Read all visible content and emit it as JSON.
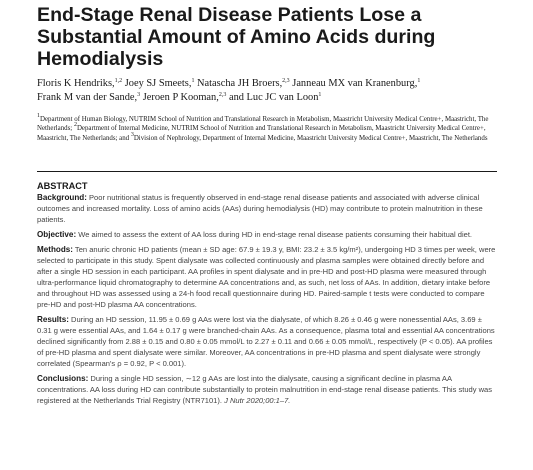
{
  "title": "End-Stage Renal Disease Patients Lose a Substantial Amount of Amino Acids during Hemodialysis",
  "authors": [
    {
      "name": "Floris K Hendriks,",
      "sup": "1,2",
      "sep": " "
    },
    {
      "name": "Joey SJ Smeets,",
      "sup": "1",
      "sep": " "
    },
    {
      "name": "Natascha JH Broers,",
      "sup": "2,3",
      "sep": " "
    },
    {
      "name": "Janneau MX van Kranenburg,",
      "sup": "1",
      "sep": " "
    },
    {
      "name": "Frank M van der Sande,",
      "sup": "3",
      "sep": " "
    },
    {
      "name": "Jeroen P Kooman,",
      "sup": "2,3",
      "sep": " "
    },
    {
      "name": "and Luc JC van Loon",
      "sup": "1",
      "sep": ""
    }
  ],
  "affiliations": [
    {
      "sup": "1",
      "text": "Department of Human Biology, NUTRIM School of Nutrition and Translational Research in Metabolism, Maastricht University Medical Centre+, Maastricht, The Netherlands; "
    },
    {
      "sup": "2",
      "text": "Department of Internal Medicine, NUTRIM School of Nutrition and Translational Research in Metabolism, Maastricht University Medical Centre+, Maastricht, The Netherlands; and "
    },
    {
      "sup": "3",
      "text": "Division of Nephrology, Department of Internal Medicine, Maastricht University Medical Centre+, Maastricht, The Netherlands"
    }
  ],
  "abstract": {
    "heading": "ABSTRACT",
    "sections": [
      {
        "label": "Background:",
        "text": " Poor nutritional status is frequently observed in end-stage renal disease patients and associated with adverse clinical outcomes and increased mortality. Loss of amino acids (AAs) during hemodialysis (HD) may contribute to protein malnutrition in these patients."
      },
      {
        "label": "Objective:",
        "text": " We aimed to assess the extent of AA loss during HD in end-stage renal disease patients consuming their habitual diet."
      },
      {
        "label": "Methods:",
        "text": " Ten anuric chronic HD patients (mean ± SD age: 67.9 ± 19.3 y, BMI: 23.2 ± 3.5 kg/m²), undergoing HD 3 times per week, were selected to participate in this study. Spent dialysate was collected continuously and plasma samples were obtained directly before and after a single HD session in each participant. AA profiles in spent dialysate and in pre-HD and post-HD plasma were measured through ultra-performance liquid chromatography to determine AA concentrations and, as such, net loss of AAs. In addition, dietary intake before and throughout HD was assessed using a 24-h food recall questionnaire during HD. Paired-sample t tests were conducted to compare pre-HD and post-HD plasma AA concentrations."
      },
      {
        "label": "Results:",
        "text": " During an HD session, 11.95 ± 0.69 g AAs were lost via the dialysate, of which 8.26 ± 0.46 g were nonessential AAs, 3.69 ± 0.31 g were essential AAs, and 1.64 ± 0.17 g were branched-chain AAs. As a consequence, plasma total and essential AA concentrations declined significantly from 2.88 ± 0.15 and 0.80 ± 0.05 mmol/L to 2.27 ± 0.11 and 0.66 ± 0.05 mmol/L, respectively (P < 0.05). AA profiles of pre-HD plasma and spent dialysate were similar. Moreover, AA concentrations in pre-HD plasma and spent dialysate were strongly correlated (Spearman's ρ = 0.92, P < 0.001)."
      },
      {
        "label": "Conclusions:",
        "text": " During a single HD session, ∼12 g AAs are lost into the dialysate, causing a significant decline in plasma AA concentrations. AA loss during HD can contribute substantially to protein malnutrition in end-stage renal disease patients. This study was registered at the Netherlands Trial Registry (NTR7101). "
      }
    ],
    "citation": "J Nutr 2020;00:1–7."
  }
}
